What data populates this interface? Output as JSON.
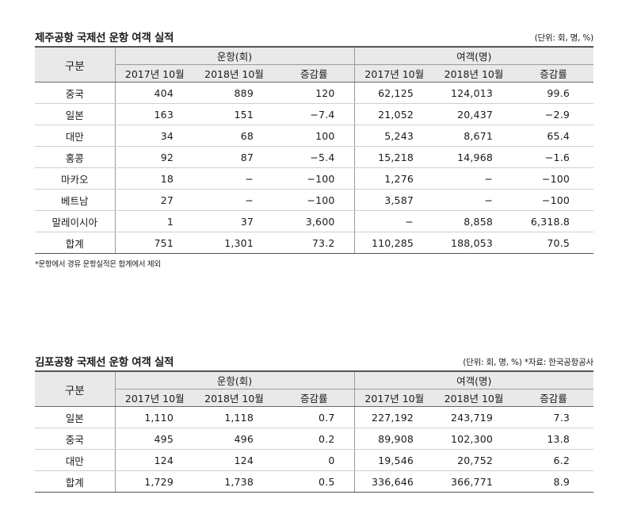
{
  "table1": {
    "title": "제주공항 국제선 운항 여객 실적",
    "unit": "(단위: 회, 명, %)",
    "header": {
      "rowhead": "구분",
      "group1": "운항(회)",
      "group2": "여객(명)",
      "sub": [
        "2017년 10월",
        "2018년 10월",
        "증감률",
        "2017년 10월",
        "2018년 10월",
        "증감률"
      ]
    },
    "rows": [
      {
        "label": "중국",
        "values": [
          "404",
          "889",
          "120",
          "62,125",
          "124,013",
          "99.6"
        ]
      },
      {
        "label": "일본",
        "values": [
          "163",
          "151",
          "−7.4",
          "21,052",
          "20,437",
          "−2.9"
        ]
      },
      {
        "label": "대만",
        "values": [
          "34",
          "68",
          "100",
          "5,243",
          "8,671",
          "65.4"
        ]
      },
      {
        "label": "홍콩",
        "values": [
          "92",
          "87",
          "−5.4",
          "15,218",
          "14,968",
          "−1.6"
        ]
      },
      {
        "label": "마카오",
        "values": [
          "18",
          "−",
          "−100",
          "1,276",
          "−",
          "−100"
        ]
      },
      {
        "label": "베트남",
        "values": [
          "27",
          "−",
          "−100",
          "3,587",
          "−",
          "−100"
        ]
      },
      {
        "label": "말레이시아",
        "values": [
          "1",
          "37",
          "3,600",
          "−",
          "8,858",
          "6,318.8"
        ]
      },
      {
        "label": "합계",
        "values": [
          "751",
          "1,301",
          "73.2",
          "110,285",
          "188,053",
          "70.5"
        ]
      }
    ],
    "note": "*운항에서 경유 운항실적은 합계에서 제외"
  },
  "table2": {
    "title": "김포공항 국제선 운항 여객 실적",
    "unit": "(단위: 회, 명, %) *자료: 한국공항공사",
    "header": {
      "rowhead": "구분",
      "group1": "운항(회)",
      "group2": "여객(명)",
      "sub": [
        "2017년 10월",
        "2018년 10월",
        "증감률",
        "2017년 10월",
        "2018년 10월",
        "증감률"
      ]
    },
    "rows": [
      {
        "label": "일본",
        "values": [
          "1,110",
          "1,118",
          "0.7",
          "227,192",
          "243,719",
          "7.3"
        ]
      },
      {
        "label": "중국",
        "values": [
          "495",
          "496",
          "0.2",
          "89,908",
          "102,300",
          "13.8"
        ]
      },
      {
        "label": "대만",
        "values": [
          "124",
          "124",
          "0",
          "19,546",
          "20,752",
          "6.2"
        ]
      },
      {
        "label": "합계",
        "values": [
          "1,729",
          "1,738",
          "0.5",
          "336,646",
          "366,771",
          "8.9"
        ]
      }
    ]
  }
}
